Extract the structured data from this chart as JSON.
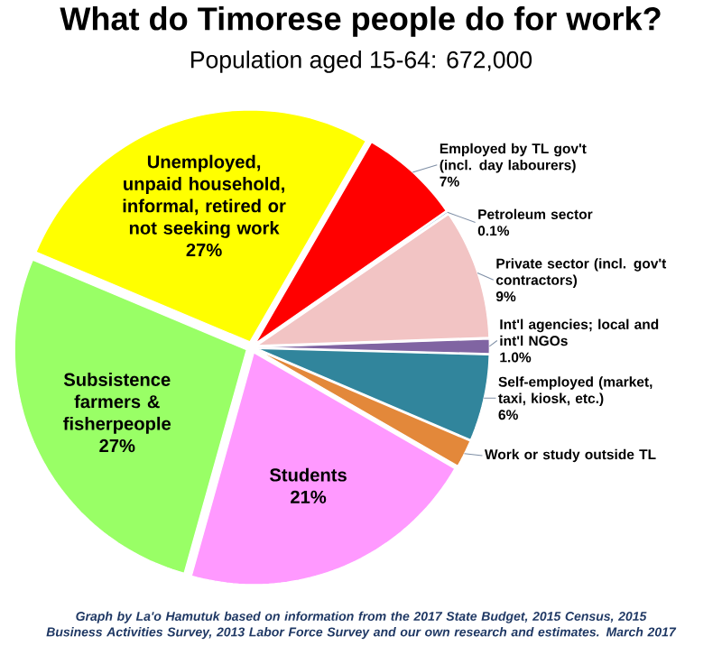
{
  "chart_data": {
    "type": "pie",
    "title": "What do Timorese people do for work?",
    "subtitle": "Population aged 15-64: 672,000",
    "categories": [
      "Employed by TL gov't (incl. day labourers)",
      "Petroleum sector",
      "Private sector (incl. gov't contractors)",
      "Int'l agencies; local and int'l NGOs",
      "Self-employed (market, taxi, kiosk, etc.)",
      "Work or study outside TL",
      "Students",
      "Subsistence farmers & fisherpeople",
      "Unemployed, unpaid household, informal, retired or not seeking work"
    ],
    "values": [
      7,
      0.1,
      9,
      1.0,
      6,
      1.9,
      21,
      27,
      27
    ],
    "colors": [
      "#ff0000",
      "#4f81bd",
      "#f2c4c4",
      "#8064a2",
      "#31859c",
      "#e3883a",
      "#ff99ff",
      "#99ff66",
      "#ffff00"
    ],
    "value_labels": [
      "7%",
      "0.1%",
      "9%",
      "1.0%",
      "6%",
      null,
      "21%",
      "27%",
      "27%"
    ],
    "annotations": [
      "Graph by La'o Hamutuk based on information from the 2017 State Budget, 2015 Census, 2015 Business Activities Survey, 2013 Labor Force Survey and our own research and estimates. March 2017"
    ]
  }
}
